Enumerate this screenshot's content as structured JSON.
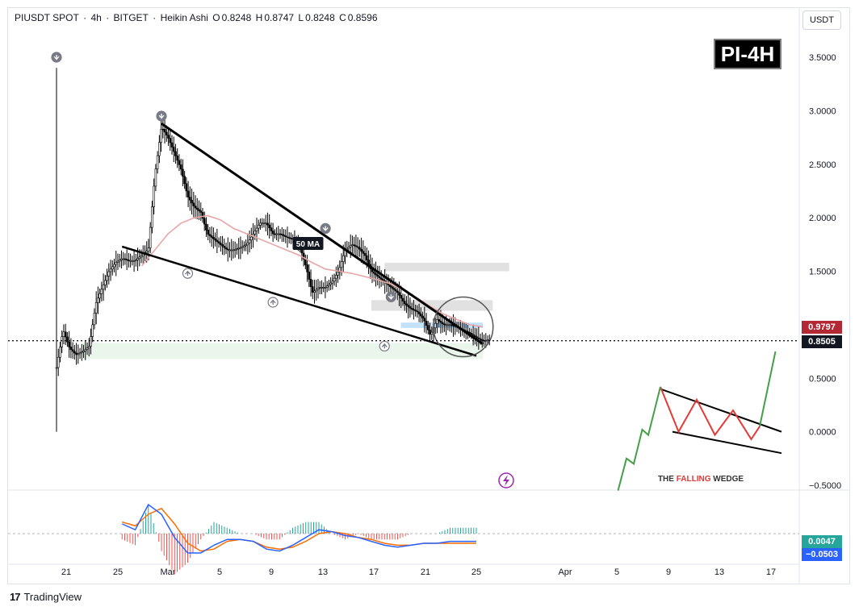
{
  "legend": {
    "symbol": "PIUSDT SPOT",
    "interval": "4h",
    "exchange": "BITGET",
    "chart_style": "Heikin Ashi",
    "open_label": "O",
    "open": "0.8248",
    "high_label": "H",
    "high": "0.8747",
    "low_label": "L",
    "low": "0.8248",
    "close_label": "C",
    "close": "0.8596",
    "separator": "·"
  },
  "currency": "USDT",
  "badge": "PI-4H",
  "ma_label": "50 MA",
  "wedge_inset": {
    "title_part1": "THE ",
    "title_part2": "FALLING",
    "title_part3": " WEDGE"
  },
  "price_tags": {
    "ma_value": "0.9797",
    "last_price": "0.8505"
  },
  "macd_tags": {
    "histogram": "0.0047",
    "signal": "−0.0503"
  },
  "footer": {
    "brand": "TradingView",
    "mark": "17"
  },
  "colors": {
    "candle": "#000000",
    "ma": "#e8a6a6",
    "trendline": "#000000",
    "ma_tag": "#b22833",
    "price_tag": "#131722",
    "macd_line": "#2962ff",
    "signal_line": "#ff6d00",
    "hist_pos": "#26a69a",
    "hist_neg": "#ef5350",
    "wedge_red": "#e53935",
    "wedge_green": "#43a047",
    "resistance_zone": "#d9d9d9",
    "support_zone": "#e8f5e9",
    "blue_zone": "#bbdefb"
  },
  "chart_data": {
    "type": "candlestick",
    "style": "Heikin Ashi",
    "x_ticks": [
      "21",
      "25",
      "Mar",
      "5",
      "9",
      "13",
      "17",
      "21",
      "25",
      "Apr",
      "5",
      "9",
      "13",
      "17"
    ],
    "y_ticks": [
      "3.5000",
      "3.0000",
      "2.5000",
      "2.0000",
      "1.5000",
      "0.5000",
      "0.0000",
      "−0.5000"
    ],
    "ylim": [
      -0.5,
      3.5
    ],
    "close_path": [
      [
        0,
        0.6
      ],
      [
        2,
        0.95
      ],
      [
        4,
        0.78
      ],
      [
        6,
        0.72
      ],
      [
        8,
        0.75
      ],
      [
        10,
        0.8
      ],
      [
        12,
        1.2
      ],
      [
        14,
        1.35
      ],
      [
        16,
        1.5
      ],
      [
        18,
        1.58
      ],
      [
        20,
        1.62
      ],
      [
        22,
        1.6
      ],
      [
        24,
        1.6
      ],
      [
        26,
        1.65
      ],
      [
        28,
        1.7
      ],
      [
        30,
        2.4
      ],
      [
        32,
        2.85
      ],
      [
        34,
        2.75
      ],
      [
        36,
        2.6
      ],
      [
        38,
        2.45
      ],
      [
        40,
        2.2
      ],
      [
        42,
        2.1
      ],
      [
        44,
        2.05
      ],
      [
        46,
        1.85
      ],
      [
        48,
        1.8
      ],
      [
        50,
        1.75
      ],
      [
        52,
        1.7
      ],
      [
        54,
        1.7
      ],
      [
        56,
        1.72
      ],
      [
        58,
        1.75
      ],
      [
        60,
        1.85
      ],
      [
        62,
        1.95
      ],
      [
        64,
        1.95
      ],
      [
        66,
        1.85
      ],
      [
        68,
        1.85
      ],
      [
        70,
        1.82
      ],
      [
        72,
        1.8
      ],
      [
        74,
        1.75
      ],
      [
        76,
        1.55
      ],
      [
        78,
        1.3
      ],
      [
        80,
        1.35
      ],
      [
        82,
        1.35
      ],
      [
        84,
        1.4
      ],
      [
        86,
        1.5
      ],
      [
        88,
        1.7
      ],
      [
        90,
        1.75
      ],
      [
        92,
        1.72
      ],
      [
        94,
        1.65
      ],
      [
        96,
        1.5
      ],
      [
        98,
        1.45
      ],
      [
        100,
        1.4
      ],
      [
        102,
        1.35
      ],
      [
        104,
        1.3
      ],
      [
        106,
        1.2
      ],
      [
        108,
        1.15
      ],
      [
        110,
        1.12
      ],
      [
        112,
        1.05
      ],
      [
        114,
        0.9
      ],
      [
        116,
        1.05
      ],
      [
        118,
        1.0
      ],
      [
        120,
        1.0
      ],
      [
        122,
        0.98
      ],
      [
        124,
        0.95
      ],
      [
        126,
        0.92
      ],
      [
        128,
        0.88
      ],
      [
        130,
        0.85
      ],
      [
        132,
        0.86
      ]
    ],
    "ma50_path": [
      [
        26,
        1.55
      ],
      [
        30,
        1.7
      ],
      [
        34,
        1.85
      ],
      [
        38,
        1.95
      ],
      [
        42,
        2.0
      ],
      [
        46,
        2.02
      ],
      [
        50,
        1.98
      ],
      [
        54,
        1.9
      ],
      [
        58,
        1.85
      ],
      [
        62,
        1.8
      ],
      [
        66,
        1.75
      ],
      [
        70,
        1.7
      ],
      [
        74,
        1.65
      ],
      [
        78,
        1.58
      ],
      [
        82,
        1.52
      ],
      [
        86,
        1.5
      ],
      [
        90,
        1.48
      ],
      [
        94,
        1.45
      ],
      [
        98,
        1.42
      ],
      [
        102,
        1.38
      ],
      [
        106,
        1.32
      ],
      [
        110,
        1.25
      ],
      [
        114,
        1.17
      ],
      [
        118,
        1.1
      ],
      [
        122,
        1.05
      ],
      [
        126,
        1.0
      ],
      [
        130,
        0.98
      ]
    ],
    "x_span": [
      0,
      160
    ],
    "wedge_upper": [
      [
        32,
        2.88
      ],
      [
        130,
        0.82
      ]
    ],
    "wedge_lower": [
      [
        20,
        1.73
      ],
      [
        128,
        0.71
      ]
    ],
    "resistance_zones": [
      {
        "x": [
          100,
          138
        ],
        "y": [
          1.5,
          1.58
        ]
      },
      {
        "x": [
          96,
          133
        ],
        "y": [
          1.13,
          1.23
        ]
      }
    ],
    "support_zone": {
      "x": [
        8,
        130
      ],
      "y": [
        0.68,
        0.83
      ]
    },
    "blue_zone": {
      "x": [
        105,
        130
      ],
      "y": [
        0.97,
        1.02
      ]
    },
    "last_price": 0.8505,
    "ma_last": 0.9797,
    "macd": {
      "macd": [
        [
          20,
          0.05
        ],
        [
          24,
          0.02
        ],
        [
          28,
          0.15
        ],
        [
          32,
          0.1
        ],
        [
          36,
          -0.02
        ],
        [
          40,
          -0.1
        ],
        [
          44,
          -0.1
        ],
        [
          48,
          -0.06
        ],
        [
          52,
          -0.03
        ],
        [
          56,
          -0.03
        ],
        [
          60,
          -0.04
        ],
        [
          64,
          -0.08
        ],
        [
          68,
          -0.09
        ],
        [
          72,
          -0.06
        ],
        [
          76,
          -0.02
        ],
        [
          80,
          0.02
        ],
        [
          84,
          0.01
        ],
        [
          88,
          -0.01
        ],
        [
          92,
          -0.02
        ],
        [
          96,
          -0.04
        ],
        [
          100,
          -0.06
        ],
        [
          104,
          -0.07
        ],
        [
          108,
          -0.06
        ],
        [
          112,
          -0.05
        ],
        [
          116,
          -0.05
        ],
        [
          120,
          -0.04
        ],
        [
          124,
          -0.04
        ],
        [
          128,
          -0.04
        ]
      ],
      "signal": [
        [
          20,
          0.06
        ],
        [
          24,
          0.04
        ],
        [
          28,
          0.1
        ],
        [
          32,
          0.13
        ],
        [
          36,
          0.05
        ],
        [
          40,
          -0.05
        ],
        [
          44,
          -0.09
        ],
        [
          48,
          -0.08
        ],
        [
          52,
          -0.04
        ],
        [
          56,
          -0.03
        ],
        [
          60,
          -0.04
        ],
        [
          64,
          -0.07
        ],
        [
          68,
          -0.08
        ],
        [
          72,
          -0.07
        ],
        [
          76,
          -0.04
        ],
        [
          80,
          0.0
        ],
        [
          84,
          0.01
        ],
        [
          88,
          0.0
        ],
        [
          92,
          -0.02
        ],
        [
          96,
          -0.03
        ],
        [
          100,
          -0.05
        ],
        [
          104,
          -0.06
        ],
        [
          108,
          -0.06
        ],
        [
          112,
          -0.05
        ],
        [
          116,
          -0.05
        ],
        [
          120,
          -0.05
        ],
        [
          124,
          -0.05
        ],
        [
          128,
          -0.05
        ]
      ],
      "ylim": [
        -0.15,
        0.2
      ]
    },
    "inset": {
      "upper_line": [
        [
          0.0,
          0.4
        ],
        [
          1.0,
          0.0
        ]
      ],
      "lower_line": [
        [
          0.1,
          0.0
        ],
        [
          1.0,
          -0.2
        ]
      ],
      "red_zigzag": [
        [
          0.0,
          0.42
        ],
        [
          0.15,
          0.0
        ],
        [
          0.3,
          0.3
        ],
        [
          0.45,
          -0.03
        ],
        [
          0.6,
          0.2
        ],
        [
          0.75,
          -0.07
        ],
        [
          0.82,
          0.05
        ]
      ],
      "green_up_before": [
        [
          -0.35,
          -0.55
        ],
        [
          -0.28,
          -0.25
        ],
        [
          -0.22,
          -0.3
        ],
        [
          -0.15,
          0.02
        ],
        [
          -0.1,
          -0.03
        ],
        [
          0.0,
          0.42
        ]
      ],
      "green_up_after": [
        [
          0.82,
          0.05
        ],
        [
          0.95,
          0.75
        ]
      ]
    },
    "markers": {
      "down_arrows": [
        [
          0,
          3.5
        ],
        [
          32,
          2.95
        ],
        [
          82,
          1.9
        ],
        [
          102,
          1.26
        ]
      ],
      "up_arrows": [
        [
          40,
          1.48
        ],
        [
          66,
          1.21
        ],
        [
          100,
          0.8
        ]
      ]
    }
  }
}
